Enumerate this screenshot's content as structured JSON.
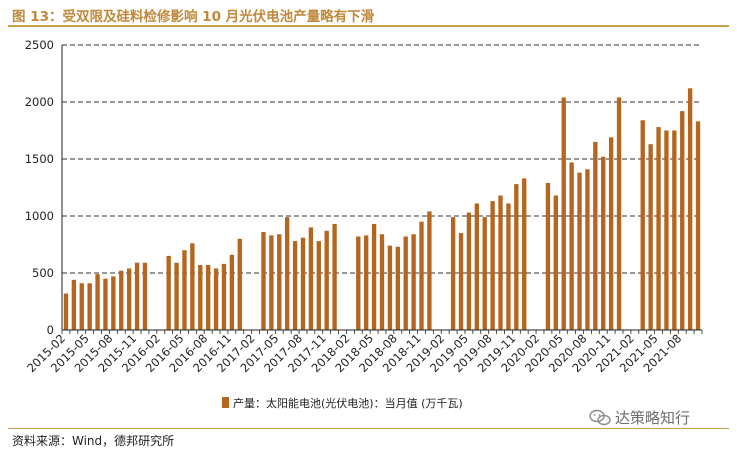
{
  "figure": {
    "title": "图 13：受双限及硅料检修影响 10 月光伏电池产量略有下滑",
    "source": "资料来源：Wind，德邦研究所",
    "watermark": "达策略知行"
  },
  "chart_data": {
    "type": "bar",
    "color": "#b5651d",
    "legend_position": "bottom-center",
    "grid": true,
    "ylim": [
      0,
      2500
    ],
    "yticks": [
      0,
      500,
      1000,
      1500,
      2000,
      2500
    ],
    "xlabel": "",
    "ylabel": "",
    "series": [
      {
        "name": "产量：太阳能电池(光伏电池)：当月值 (万千瓦)",
        "values": [
          320,
          440,
          410,
          410,
          490,
          450,
          470,
          520,
          540,
          590,
          590,
          null,
          null,
          650,
          590,
          700,
          760,
          570,
          570,
          540,
          580,
          660,
          800,
          null,
          null,
          860,
          830,
          840,
          990,
          780,
          810,
          900,
          780,
          870,
          930,
          null,
          null,
          820,
          830,
          930,
          840,
          740,
          730,
          820,
          840,
          950,
          1040,
          null,
          null,
          990,
          850,
          1030,
          1110,
          990,
          1130,
          1180,
          1110,
          1280,
          1330,
          null,
          null,
          1290,
          1180,
          2040,
          1470,
          1380,
          1410,
          1650,
          1520,
          1690,
          2040,
          null,
          null,
          1840,
          1630,
          1780,
          1750,
          1750,
          1920,
          2120,
          1830
        ]
      }
    ],
    "x_tick_labels": [
      "2015-02",
      "2015-05",
      "2015-08",
      "2015-11",
      "2016-02",
      "2016-05",
      "2016-08",
      "2016-11",
      "2017-02",
      "2017-05",
      "2017-08",
      "2017-11",
      "2018-02",
      "2018-05",
      "2018-08",
      "2018-11",
      "2019-02",
      "2019-05",
      "2019-08",
      "2019-11",
      "2020-02",
      "2020-05",
      "2020-08",
      "2020-11",
      "2021-02",
      "2021-05",
      "2021-08"
    ],
    "x_tick_every": 3
  }
}
